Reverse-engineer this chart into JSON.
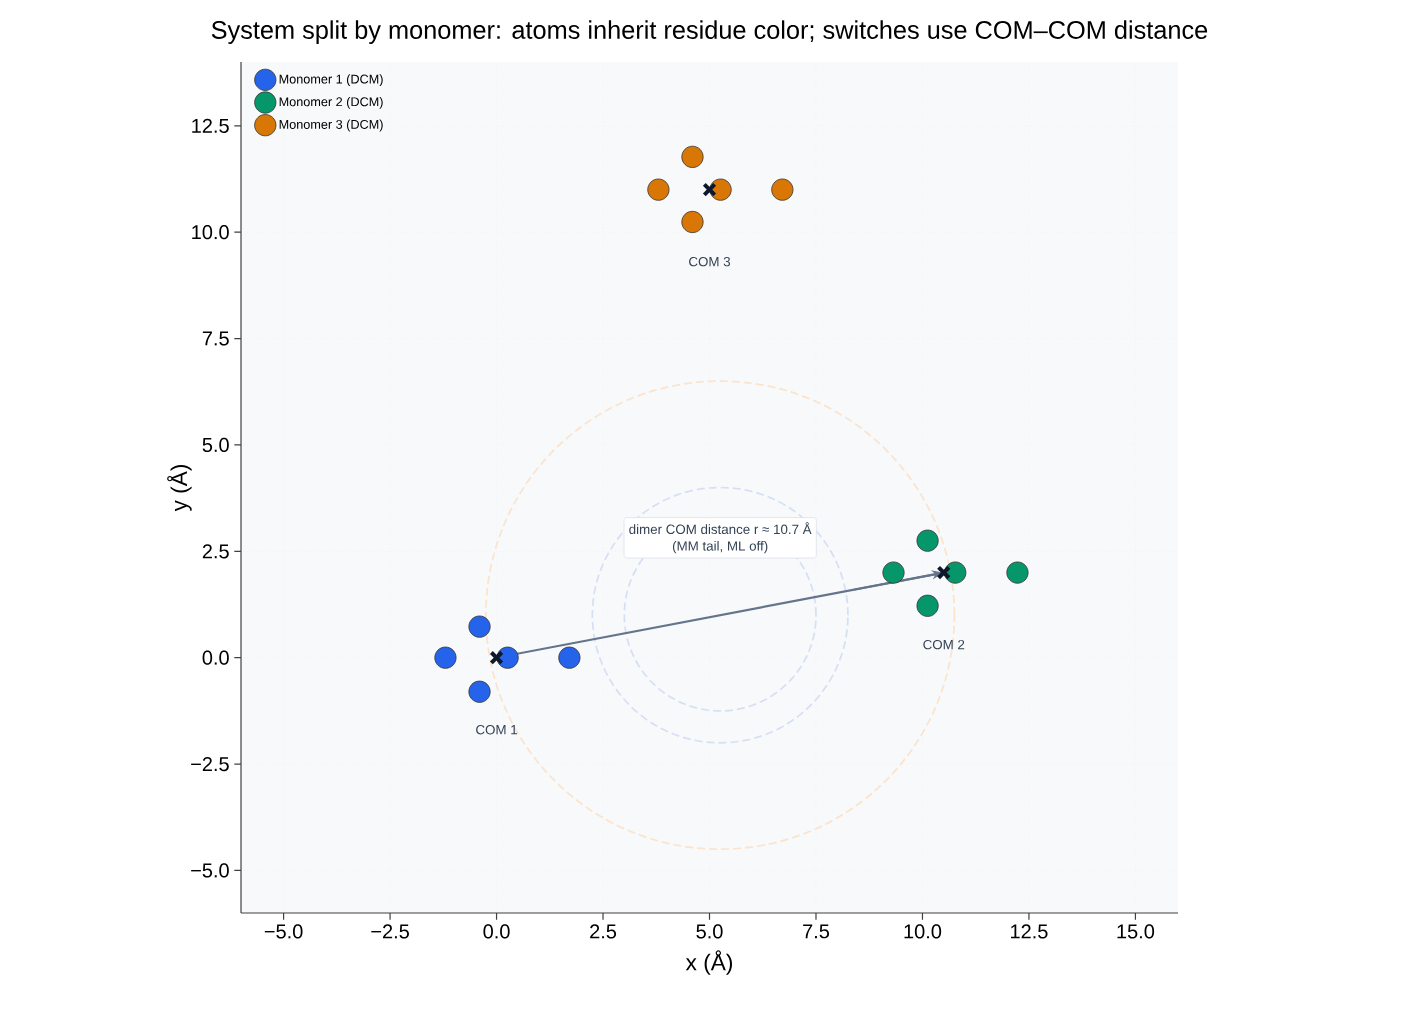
{
  "chart_data": {
    "type": "scatter",
    "title": "System split by monomer: atoms inherit residue color; switches use COM–COM distance",
    "xlabel": "x (Å)",
    "ylabel": "y (Å)",
    "xlim": [
      -6,
      16
    ],
    "ylim": [
      -6,
      14
    ],
    "xticks": [
      {
        "value": -5,
        "label": "−5.0"
      },
      {
        "value": -2.5,
        "label": "−2.5"
      },
      {
        "value": 0,
        "label": "0.0"
      },
      {
        "value": 2.5,
        "label": "2.5"
      },
      {
        "value": 5,
        "label": "5.0"
      },
      {
        "value": 7.5,
        "label": "7.5"
      },
      {
        "value": 10,
        "label": "10.0"
      },
      {
        "value": 12.5,
        "label": "12.5"
      },
      {
        "value": 15,
        "label": "15.0"
      }
    ],
    "yticks": [
      {
        "value": -5,
        "label": "−5.0"
      },
      {
        "value": -2.5,
        "label": "−2.5"
      },
      {
        "value": 0,
        "label": "0.0"
      },
      {
        "value": 2.5,
        "label": "2.5"
      },
      {
        "value": 5,
        "label": "5.0"
      },
      {
        "value": 7.5,
        "label": "7.5"
      },
      {
        "value": 10,
        "label": "10.0"
      },
      {
        "value": 12.5,
        "label": "12.5"
      }
    ],
    "grid": true,
    "legend": "top left",
    "series": [
      {
        "type": "line",
        "color": "#64748b",
        "line_style": "solid",
        "marker": "none",
        "x": [
          0,
          10.5
        ],
        "values": [
          0,
          2
        ]
      },
      {
        "type": "scatter",
        "name": "Monomer 1 (DCM)",
        "color": "#2563eb",
        "marker": "circle",
        "x": [
          -1.2,
          -0.4,
          -0.4,
          0.26,
          1.71
        ],
        "values": [
          0,
          0.73,
          -0.8,
          0,
          0
        ]
      },
      {
        "type": "scatter",
        "name": "Monomer 2 (DCM)",
        "color": "#059669",
        "marker": "circle",
        "x": [
          9.32,
          10.12,
          10.12,
          10.77,
          12.23
        ],
        "values": [
          2.0,
          2.75,
          1.22,
          2.0,
          2.0
        ]
      },
      {
        "type": "scatter",
        "name": "Monomer 3 (DCM)",
        "color": "#d97706",
        "marker": "circle",
        "x": [
          3.8,
          4.6,
          4.6,
          5.26,
          6.71
        ],
        "values": [
          11.0,
          11.77,
          10.24,
          11.0,
          11.0
        ]
      },
      {
        "type": "scatter",
        "color": "#0f172a",
        "marker": "cross",
        "x": [
          0,
          10.5,
          5.0
        ],
        "values": [
          0,
          2,
          11
        ]
      }
    ],
    "annotations": [
      "COM 1",
      "COM 2",
      "COM 3",
      "dimer COM distance r ≈ 10.7 Å",
      "(MM tail, ML off)"
    ]
  }
}
